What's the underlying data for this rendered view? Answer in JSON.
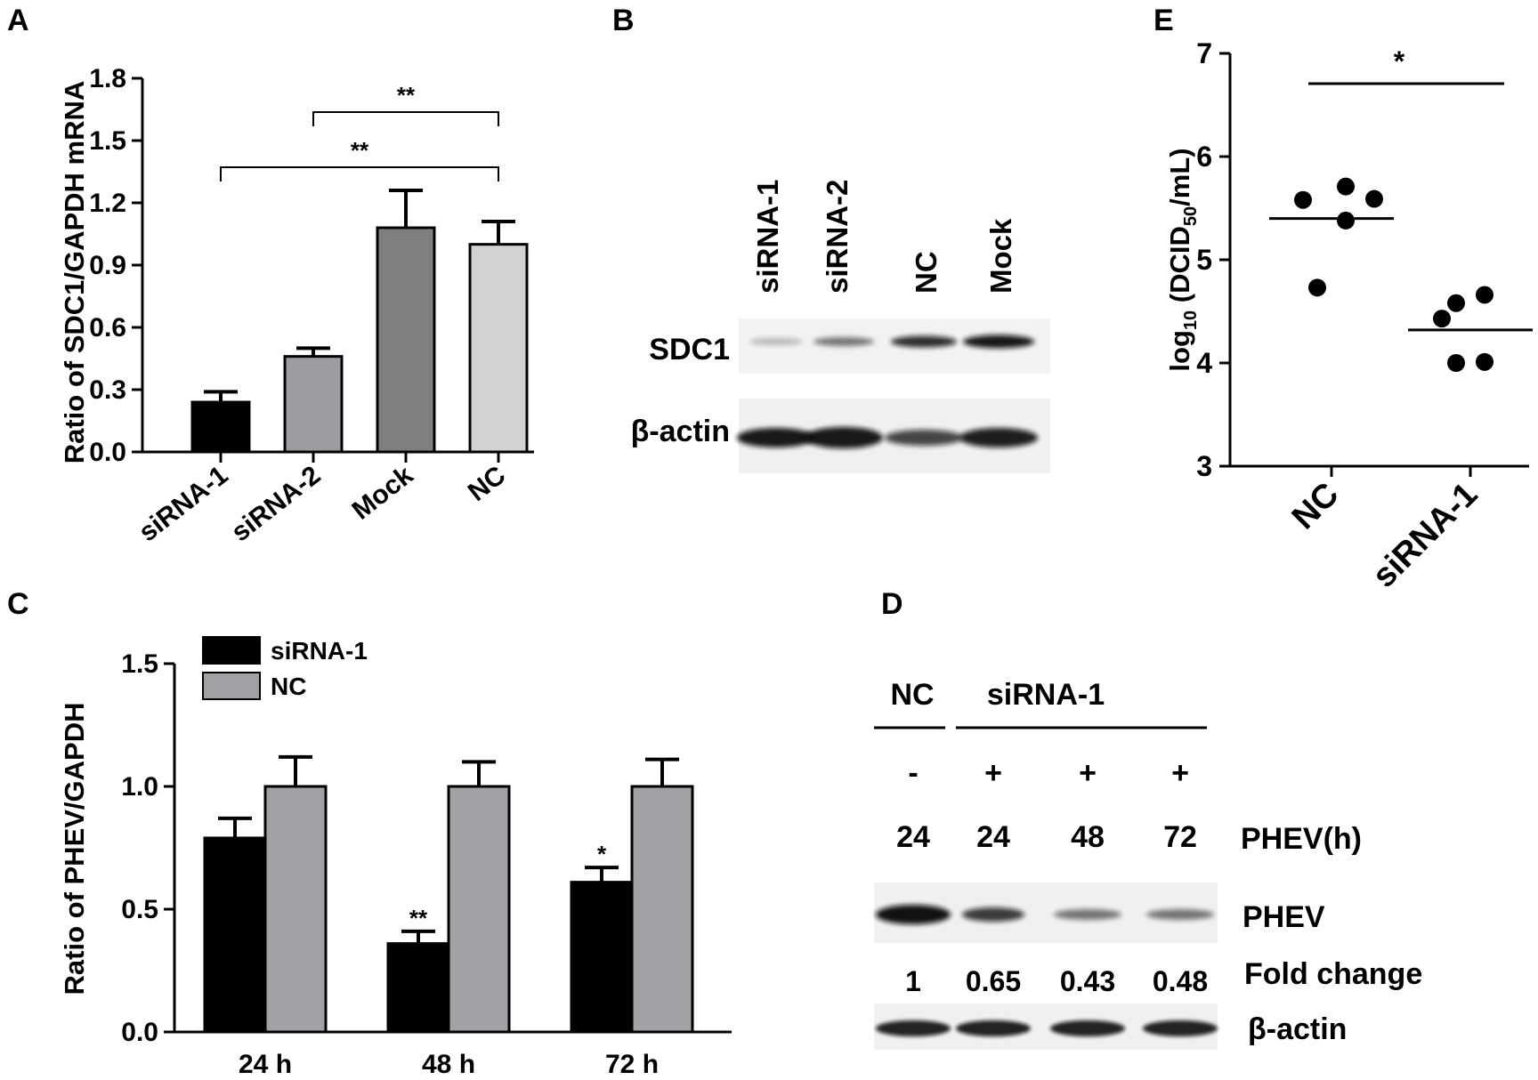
{
  "panels": {
    "A": "A",
    "B": "B",
    "C": "C",
    "D": "D",
    "E": "E"
  },
  "colors": {
    "siRNA1": "#000000",
    "siRNA2": "#9c9ca2",
    "Mock": "#7f7f7f",
    "NC_A": "#d2d2d2",
    "NC_C": "#a2a2a6"
  },
  "chart_data": [
    {
      "panel": "A",
      "type": "bar",
      "ylabel": "Ratio of SDC1/GAPDH mRNA",
      "ylim": [
        0,
        1.8
      ],
      "yticks": [
        "0.0",
        "0.3",
        "0.6",
        "0.9",
        "1.2",
        "1.5",
        "1.8"
      ],
      "categories": [
        "siRNA-1",
        "siRNA-2",
        "Mock",
        "NC"
      ],
      "values": [
        0.24,
        0.46,
        1.08,
        1.0
      ],
      "errors": [
        0.05,
        0.04,
        0.18,
        0.11
      ],
      "significance": [
        {
          "from": 0,
          "to": 3,
          "label": "**"
        },
        {
          "from": 1,
          "to": 3,
          "label": "**"
        }
      ]
    },
    {
      "panel": "C",
      "type": "bar",
      "ylabel": "Ratio of PHEV/GAPDH",
      "ylim": [
        0,
        1.5
      ],
      "yticks": [
        "0.0",
        "0.5",
        "1.0",
        "1.5"
      ],
      "categories": [
        "24 h",
        "48 h",
        "72 h"
      ],
      "series": [
        {
          "name": "siRNA-1",
          "values": [
            0.79,
            0.36,
            0.61
          ],
          "errors": [
            0.08,
            0.05,
            0.06
          ],
          "sig": [
            "",
            "**",
            "*"
          ]
        },
        {
          "name": "NC",
          "values": [
            1.0,
            1.0,
            1.0
          ],
          "errors": [
            0.12,
            0.1,
            0.11
          ],
          "sig": [
            "",
            "",
            ""
          ]
        }
      ],
      "legend": "top-left"
    },
    {
      "panel": "E",
      "type": "scatter",
      "ylabel_main": "log",
      "ylabel_sub": "10",
      "ylabel_mid": " (DCID",
      "ylabel_sub2": "50",
      "ylabel_end": "/mL)",
      "ylim": [
        3,
        7
      ],
      "yticks": [
        "3",
        "4",
        "5",
        "6",
        "7"
      ],
      "categories": [
        "NC",
        "siRNA-1"
      ],
      "points": [
        [
          5.58,
          5.71,
          5.59,
          5.38,
          4.73
        ],
        [
          4.58,
          4.66,
          4.43,
          4.01,
          4.0
        ]
      ],
      "means": [
        5.4,
        4.32
      ],
      "significance": {
        "label": "*"
      }
    }
  ],
  "blotB": {
    "lanes": [
      "siRNA-1",
      "siRNA-2",
      "NC",
      "Mock"
    ],
    "rows": [
      "SDC1",
      "β-actin"
    ]
  },
  "blotD": {
    "group_nc": "NC",
    "group_sirna": "siRNA-1",
    "treat": [
      "-",
      "+",
      "+",
      "+"
    ],
    "hours": [
      "24",
      "24",
      "48",
      "72"
    ],
    "hours_label": "PHEV(h)",
    "band_label": "PHEV",
    "fold": [
      "1",
      "0.65",
      "0.43",
      "0.48"
    ],
    "fold_label": "Fold change",
    "actin_label": "β-actin"
  }
}
